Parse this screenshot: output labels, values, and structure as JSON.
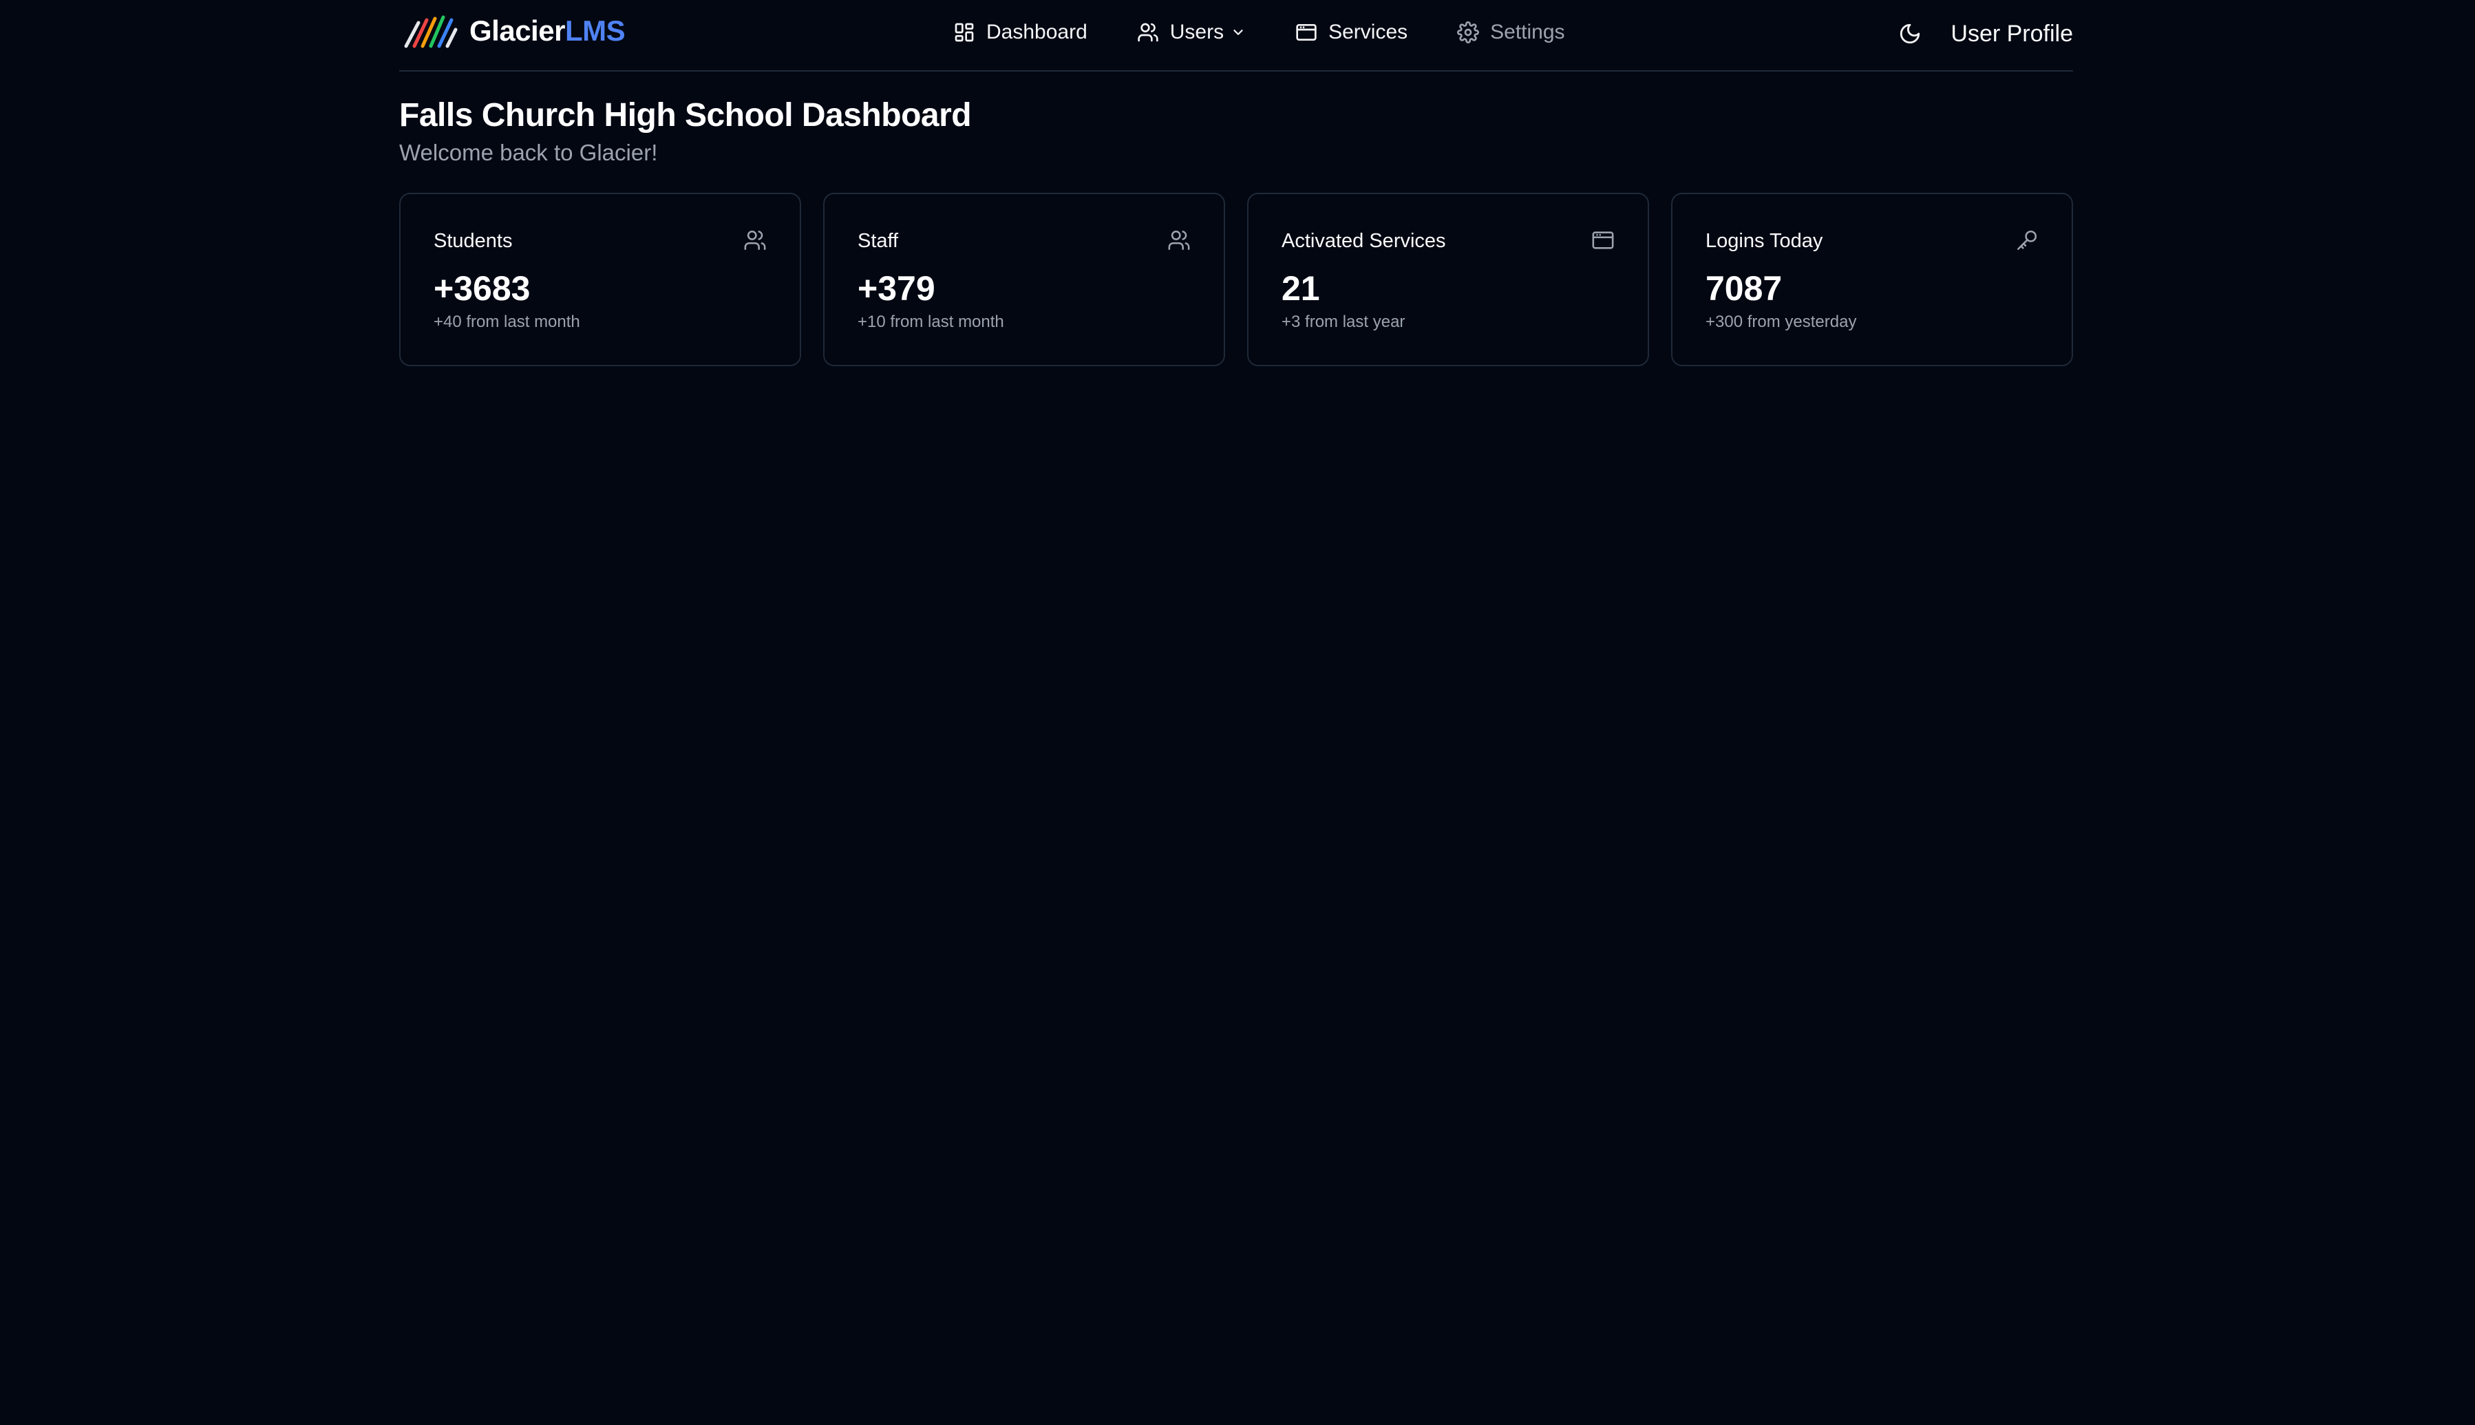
{
  "header": {
    "brand": {
      "name_part1": "Glacier",
      "name_part2": "LMS"
    },
    "nav": [
      {
        "label": "Dashboard",
        "icon": "layout-dashboard-icon"
      },
      {
        "label": "Users",
        "icon": "users-icon",
        "has_dropdown": true
      },
      {
        "label": "Services",
        "icon": "app-window-icon"
      },
      {
        "label": "Settings",
        "icon": "gear-icon",
        "muted": true
      }
    ],
    "theme_toggle_icon": "moon-icon",
    "profile_label": "User Profile"
  },
  "page": {
    "title": "Falls Church High School Dashboard",
    "subtitle": "Welcome back to Glacier!"
  },
  "cards": [
    {
      "label": "Students",
      "value": "+3683",
      "delta": "+40 from last month",
      "icon": "users-icon"
    },
    {
      "label": "Staff",
      "value": "+379",
      "delta": "+10 from last month",
      "icon": "users-icon"
    },
    {
      "label": "Activated Services",
      "value": "21",
      "delta": "+3 from last year",
      "icon": "app-window-icon"
    },
    {
      "label": "Logins Today",
      "value": "7087",
      "delta": "+300 from yesterday",
      "icon": "key-icon"
    }
  ],
  "colors": {
    "background": "#030712",
    "border": "#1f2937",
    "accent": "#4f82f3",
    "muted_text": "#9ca3af"
  }
}
